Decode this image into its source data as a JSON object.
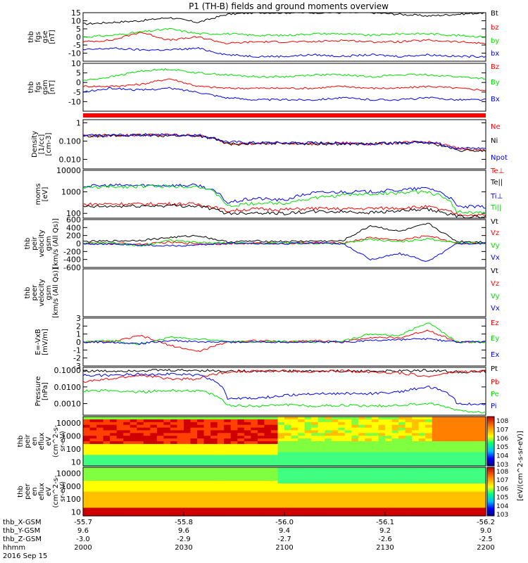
{
  "title": "P1 (TH-B) fields and ground moments overview",
  "date_label": "2016 Sep 15",
  "colors": {
    "black": "#000000",
    "red": "#ff0000",
    "green": "#00e000",
    "blue": "#0000ff"
  },
  "chart_data": [
    {
      "id": "fgs_gse",
      "type": "line",
      "ylabel": [
        "thb",
        "fgs",
        "gse",
        "[nT]"
      ],
      "ylim": [
        -15,
        15
      ],
      "yticks": [
        15,
        10,
        5,
        0,
        -5,
        -10
      ],
      "series": [
        {
          "name": "Bt",
          "color": "black",
          "values": [
            8,
            9,
            10,
            12,
            9,
            14,
            15,
            15,
            15,
            15,
            15,
            14,
            13,
            14,
            15
          ]
        },
        {
          "name": "bz",
          "color": "red",
          "values": [
            -3,
            -2,
            3,
            -2,
            0,
            -4,
            -3,
            -3,
            -3,
            -2,
            -3,
            -3,
            -2,
            -3,
            -4
          ]
        },
        {
          "name": "by",
          "color": "green",
          "values": [
            0,
            1,
            3,
            5,
            2,
            2,
            1,
            1,
            2,
            2,
            1,
            2,
            2,
            1,
            0
          ]
        },
        {
          "name": "bx",
          "color": "blue",
          "values": [
            -8,
            -7,
            -8,
            -8,
            -7,
            -11,
            -12,
            -12,
            -11,
            -12,
            -11,
            -12,
            -11,
            -12,
            -12
          ]
        }
      ]
    },
    {
      "id": "fgs_gsm",
      "type": "line",
      "ylabel": [
        "thb",
        "fgs",
        "gsm",
        "[nT]"
      ],
      "ylim": [
        -15,
        10
      ],
      "yticks": [
        10,
        5,
        0,
        -5,
        -10
      ],
      "series": [
        {
          "name": "Bz",
          "color": "red",
          "values": [
            -2,
            -2,
            -1,
            2,
            -2,
            -3,
            -3,
            -3,
            -3,
            -2,
            -3,
            -3,
            -2,
            -3,
            -4
          ]
        },
        {
          "name": "By",
          "color": "green",
          "values": [
            1,
            3,
            6,
            7,
            5,
            4,
            3,
            3,
            4,
            4,
            3,
            4,
            4,
            3,
            2
          ]
        },
        {
          "name": "Bx",
          "color": "blue",
          "values": [
            -5,
            -3,
            -4,
            -3,
            -5,
            -8,
            -9,
            -9,
            -9,
            -8,
            -9,
            -9,
            -8,
            -9,
            -9
          ]
        }
      ]
    },
    {
      "id": "density",
      "type": "line",
      "log": true,
      "ylabel": [
        "Density",
        "[1/cc]",
        "[cm-3]"
      ],
      "ylim": [
        0.003,
        1.5
      ],
      "yticks": [
        1.0,
        0.1,
        0.01
      ],
      "series": [
        {
          "name": "Ne",
          "color": "red",
          "values": [
            0.2,
            0.2,
            0.22,
            0.22,
            0.2,
            0.08,
            0.07,
            0.08,
            0.07,
            0.08,
            0.07,
            0.08,
            0.09,
            0.04,
            0.03
          ]
        },
        {
          "name": "Ni",
          "color": "black",
          "values": [
            0.18,
            0.2,
            0.21,
            0.2,
            0.2,
            0.07,
            0.07,
            0.08,
            0.07,
            0.07,
            0.07,
            0.08,
            0.08,
            0.03,
            0.03
          ]
        },
        {
          "name": "Npot",
          "color": "blue",
          "values": [
            0.2,
            0.21,
            0.22,
            0.22,
            0.21,
            0.09,
            0.08,
            0.08,
            0.08,
            0.08,
            0.07,
            0.08,
            0.09,
            0.04,
            0.04
          ]
        }
      ]
    },
    {
      "id": "moms",
      "type": "line",
      "log": true,
      "ylabel": [
        "moms",
        "[eV]"
      ],
      "ylim": [
        60,
        10000
      ],
      "yticks": [
        10000,
        1000,
        100
      ],
      "series": [
        {
          "name": "Te⊥",
          "color": "red",
          "values": [
            260,
            280,
            270,
            280,
            270,
            130,
            160,
            150,
            170,
            160,
            170,
            180,
            200,
            90,
            80
          ]
        },
        {
          "name": "Te||",
          "color": "black",
          "values": [
            200,
            210,
            220,
            230,
            220,
            100,
            110,
            100,
            120,
            120,
            110,
            130,
            150,
            70,
            70
          ]
        },
        {
          "name": "Ti⊥",
          "color": "blue",
          "values": [
            1800,
            2000,
            2000,
            2000,
            2000,
            300,
            500,
            400,
            900,
            1000,
            1000,
            1200,
            1500,
            200,
            200
          ]
        },
        {
          "name": "Ti||",
          "color": "green",
          "values": [
            1600,
            1700,
            1800,
            1800,
            1800,
            200,
            300,
            300,
            500,
            700,
            800,
            900,
            1000,
            120,
            100
          ]
        }
      ]
    },
    {
      "id": "peir_vel",
      "type": "line",
      "ylabel": [
        "thb",
        "peir",
        "velocity",
        "gsm",
        "[km/s (All Qs)]"
      ],
      "ylim": [
        -600,
        600
      ],
      "yticks": [
        600,
        400,
        200,
        0,
        -200,
        -400,
        -600
      ],
      "series": [
        {
          "name": "Vt",
          "color": "black",
          "values": [
            50,
            60,
            80,
            150,
            200,
            40,
            60,
            50,
            60,
            60,
            450,
            300,
            500,
            50,
            40
          ]
        },
        {
          "name": "Vz",
          "color": "red",
          "values": [
            0,
            10,
            -20,
            30,
            0,
            -10,
            10,
            0,
            20,
            10,
            150,
            80,
            200,
            10,
            0
          ]
        },
        {
          "name": "Vy",
          "color": "green",
          "values": [
            0,
            20,
            -60,
            80,
            20,
            10,
            0,
            10,
            0,
            0,
            100,
            40,
            120,
            20,
            10
          ]
        },
        {
          "name": "Vx",
          "color": "blue",
          "values": [
            0,
            -20,
            -40,
            -60,
            -40,
            10,
            0,
            0,
            10,
            0,
            -400,
            -250,
            -450,
            0,
            0
          ]
        }
      ]
    },
    {
      "id": "peer_vel",
      "type": "line",
      "ylabel": [
        "thb",
        "peer",
        "velocity",
        "gsm",
        "[km/s (All Qs)]"
      ],
      "ylim": [
        -600,
        600
      ],
      "yticks": [],
      "series": [
        {
          "name": "Vt",
          "color": "black",
          "values": []
        },
        {
          "name": "Vz",
          "color": "red",
          "values": []
        },
        {
          "name": "Vy",
          "color": "green",
          "values": []
        },
        {
          "name": "Vx",
          "color": "blue",
          "values": []
        }
      ]
    },
    {
      "id": "efield",
      "type": "line",
      "ylabel": [
        "E=-VxB",
        "[mV/m]"
      ],
      "ylim": [
        -3,
        3
      ],
      "yticks": [
        3,
        2,
        1,
        0,
        -1,
        -2,
        -3
      ],
      "series": [
        {
          "name": "Ez",
          "color": "red",
          "values": [
            0,
            0,
            0.8,
            -0.4,
            -1.2,
            0,
            0.2,
            0,
            0.2,
            0,
            0.6,
            0.5,
            1.5,
            0,
            0
          ]
        },
        {
          "name": "Ey",
          "color": "green",
          "values": [
            0,
            0.2,
            -0.3,
            0.6,
            0.4,
            0.1,
            0,
            0.1,
            0,
            0.1,
            1,
            0.8,
            2.5,
            0,
            0
          ]
        },
        {
          "name": "Ex",
          "color": "blue",
          "values": [
            0,
            0,
            -0.2,
            0.2,
            0,
            0,
            0,
            0,
            0,
            0,
            0.2,
            0.3,
            0.4,
            0,
            0
          ]
        }
      ]
    },
    {
      "id": "pressure",
      "type": "line",
      "log": true,
      "ylabel": [
        "Pressure",
        "[nPa]"
      ],
      "ylim": [
        0.0002,
        0.15
      ],
      "yticks": [
        0.1,
        0.01,
        0.001
      ],
      "series": [
        {
          "name": "Pt",
          "color": "black",
          "values": [
            0.09,
            0.09,
            0.1,
            0.1,
            0.1,
            0.09,
            0.09,
            0.09,
            0.09,
            0.09,
            0.09,
            0.09,
            0.1,
            0.08,
            0.08
          ]
        },
        {
          "name": "Pb",
          "color": "red",
          "values": [
            0.02,
            0.03,
            0.05,
            0.03,
            0.03,
            0.08,
            0.09,
            0.09,
            0.08,
            0.09,
            0.08,
            0.07,
            0.04,
            0.08,
            0.09
          ]
        },
        {
          "name": "Pe",
          "color": "green",
          "values": [
            0.006,
            0.006,
            0.005,
            0.006,
            0.006,
            0.0008,
            0.0007,
            0.0009,
            0.0007,
            0.0008,
            0.0007,
            0.0008,
            0.001,
            0.0004,
            0.0003
          ]
        },
        {
          "name": "Pi",
          "color": "blue",
          "values": [
            0.05,
            0.05,
            0.06,
            0.06,
            0.05,
            0.002,
            0.002,
            0.003,
            0.004,
            0.004,
            0.004,
            0.005,
            0.01,
            0.001,
            0.0009
          ]
        }
      ]
    },
    {
      "id": "peir_spec",
      "type": "heatmap",
      "log": true,
      "ylabel": [
        "thb",
        "peir",
        "en",
        "eflux",
        "eV",
        "(cm^2-s-",
        "sr-eV)"
      ],
      "ylim": [
        5,
        30000
      ],
      "yticks": [
        10000,
        1000,
        100,
        10
      ]
    },
    {
      "id": "peer_spec",
      "type": "heatmap",
      "log": true,
      "ylabel": [
        "thb",
        "peer",
        "en",
        "eflux",
        "eV",
        "(cm^2-s-",
        "sr-eV)"
      ],
      "ylim": [
        5,
        30000
      ],
      "yticks": [
        10000,
        1000,
        100,
        10
      ]
    }
  ],
  "colorbar": {
    "label": "[eV/(cm^2-s-sr-eV)]",
    "ticks_top": [
      "10^8",
      "10^7",
      "10^6",
      "10^5",
      "10^4",
      "10^3"
    ],
    "ticks_bottom": [
      "10^8",
      "10^7",
      "10^6",
      "10^5",
      "10^4",
      "10^3"
    ]
  },
  "xaxis": {
    "ticks_x_gsm": [
      "-55.7",
      "-55.8",
      "-56.0",
      "-56.1",
      "-56.2"
    ],
    "ticks_y_gsm": [
      "9.6",
      "9.6",
      "9.4",
      "9.2",
      "9.0"
    ],
    "ticks_z_gsm": [
      "-3.0",
      "-2.9",
      "-2.7",
      "-2.6",
      "-2.5"
    ],
    "ticks_hhmm": [
      "2000",
      "2030",
      "2100",
      "2130",
      "2200"
    ],
    "row_labels": [
      "thb_X-GSM",
      "thb_Y-GSM",
      "thb_Z-GSM",
      "hhmm"
    ]
  }
}
